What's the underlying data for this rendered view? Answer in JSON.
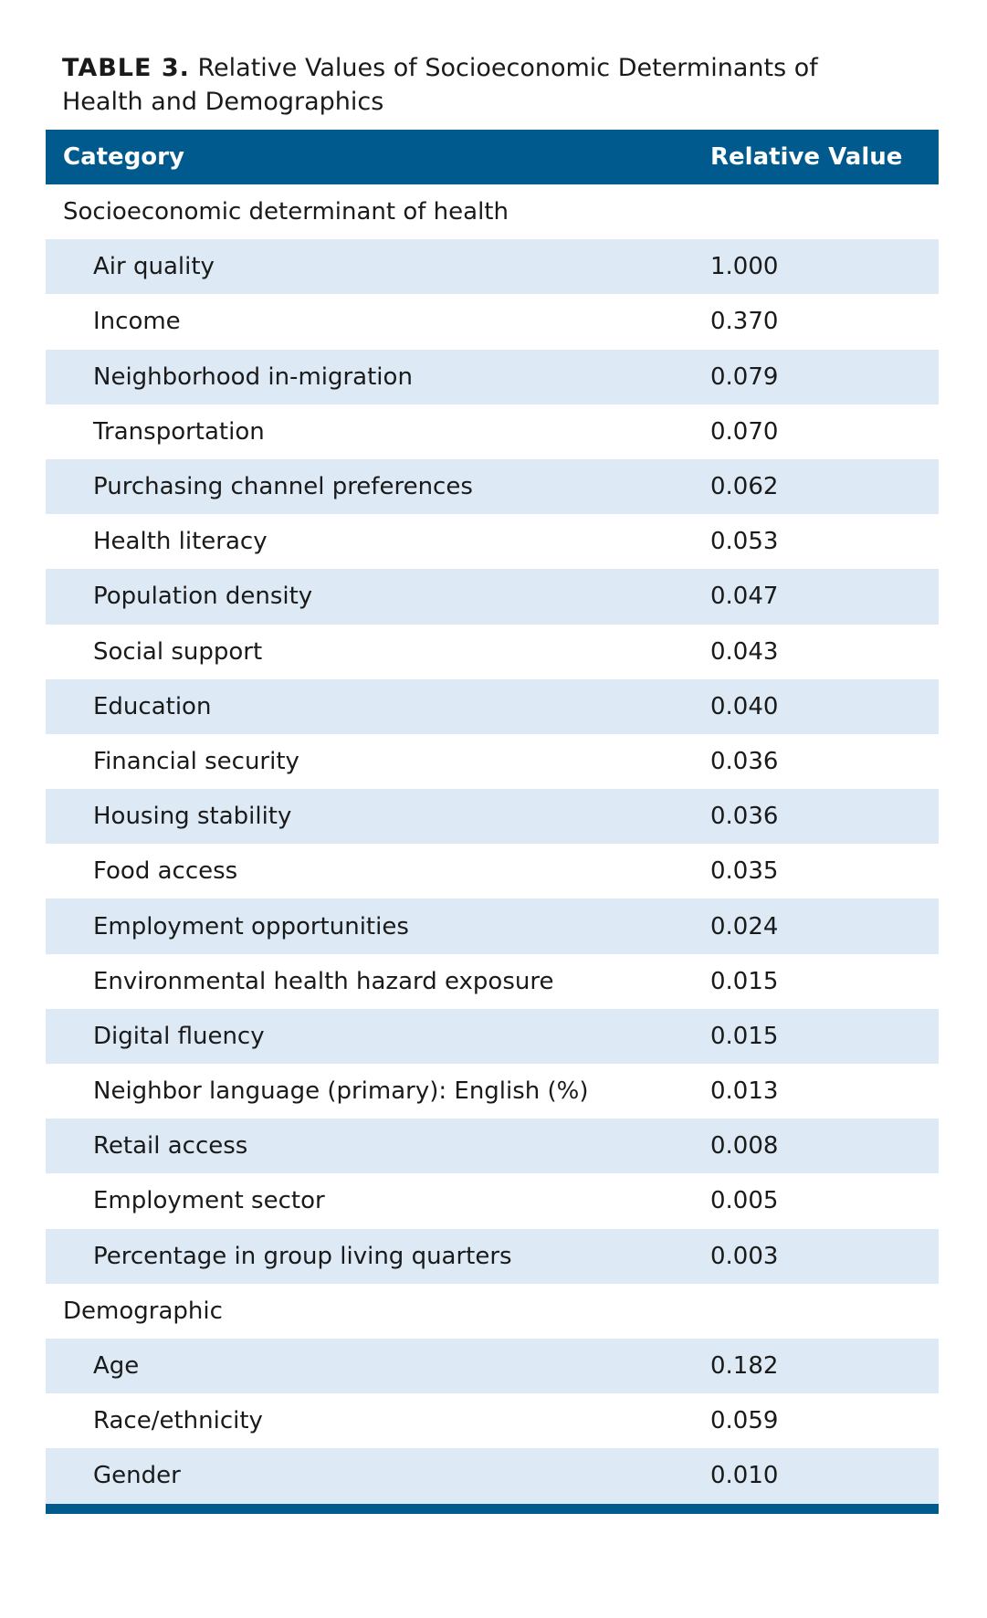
{
  "caption": {
    "label": "TABLE 3.",
    "title": "Relative Values of Socioeconomic Determinants of Health and Demographics"
  },
  "header": {
    "category": "Category",
    "relative_value": "Relative Value"
  },
  "sections": [
    {
      "title": "Socioeconomic determinant of health",
      "rows": [
        {
          "category": "Air quality",
          "value": "1.000"
        },
        {
          "category": "Income",
          "value": "0.370"
        },
        {
          "category": "Neighborhood in-migration",
          "value": "0.079"
        },
        {
          "category": "Transportation",
          "value": "0.070"
        },
        {
          "category": "Purchasing channel preferences",
          "value": "0.062"
        },
        {
          "category": "Health literacy",
          "value": "0.053"
        },
        {
          "category": "Population density",
          "value": "0.047"
        },
        {
          "category": "Social support",
          "value": "0.043"
        },
        {
          "category": "Education",
          "value": "0.040"
        },
        {
          "category": "Financial security",
          "value": "0.036"
        },
        {
          "category": "Housing stability",
          "value": "0.036"
        },
        {
          "category": "Food access",
          "value": "0.035"
        },
        {
          "category": "Employment opportunities",
          "value": "0.024"
        },
        {
          "category": "Environmental health hazard exposure",
          "value": "0.015"
        },
        {
          "category": "Digital fluency",
          "value": "0.015"
        },
        {
          "category": "Neighbor language (primary): English (%)",
          "value": "0.013"
        },
        {
          "category": "Retail access",
          "value": "0.008"
        },
        {
          "category": "Employment sector",
          "value": "0.005"
        },
        {
          "category": "Percentage in group living quarters",
          "value": "0.003"
        }
      ]
    },
    {
      "title": "Demographic",
      "rows": [
        {
          "category": "Age",
          "value": "0.182"
        },
        {
          "category": "Race/ethnicity",
          "value": "0.059"
        },
        {
          "category": "Gender",
          "value": "0.010"
        }
      ]
    }
  ]
}
